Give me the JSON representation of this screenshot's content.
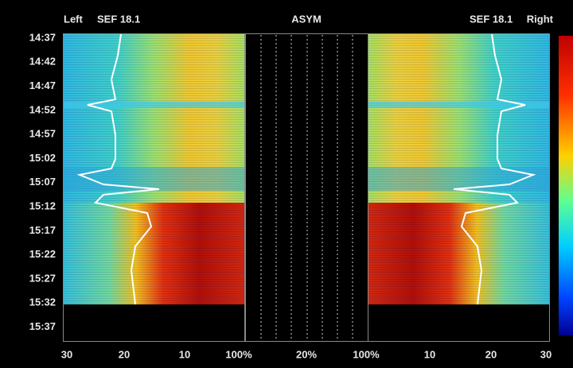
{
  "header": {
    "left_label": "Left",
    "left_sef": "SEF 18.1",
    "center_label": "ASYM",
    "right_sef": "SEF 18.1",
    "right_label": "Right"
  },
  "time_labels": [
    "14:37",
    "14:42",
    "14:47",
    "14:52",
    "14:57",
    "15:02",
    "15:07",
    "15:12",
    "15:17",
    "15:22",
    "15:27",
    "15:32",
    "15:37"
  ],
  "bottom_axis": {
    "left": [
      "30",
      "20",
      "10",
      "100%"
    ],
    "center": "20%",
    "right": [
      "100%",
      "10",
      "20",
      "30"
    ]
  }
}
